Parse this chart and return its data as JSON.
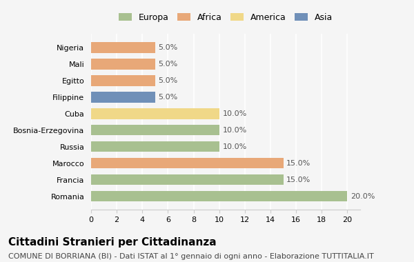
{
  "categories": [
    "Romania",
    "Francia",
    "Marocco",
    "Russia",
    "Bosnia-Erzegovina",
    "Cuba",
    "Filippine",
    "Egitto",
    "Mali",
    "Nigeria"
  ],
  "values": [
    20.0,
    15.0,
    15.0,
    10.0,
    10.0,
    10.0,
    5.0,
    5.0,
    5.0,
    5.0
  ],
  "colors": [
    "#a8c090",
    "#a8c090",
    "#e8a878",
    "#a8c090",
    "#a8c090",
    "#f0d888",
    "#7090b8",
    "#e8a878",
    "#e8a878",
    "#e8a878"
  ],
  "legend_labels": [
    "Europa",
    "Africa",
    "America",
    "Asia"
  ],
  "legend_colors": [
    "#a8c090",
    "#e8a878",
    "#f0d888",
    "#7090b8"
  ],
  "xlim": [
    0,
    21
  ],
  "xticks": [
    0,
    2,
    4,
    6,
    8,
    10,
    12,
    14,
    16,
    18,
    20
  ],
  "title": "Cittadini Stranieri per Cittadinanza",
  "subtitle": "COMUNE DI BORRIANA (BI) - Dati ISTAT al 1° gennaio di ogni anno - Elaborazione TUTTITALIA.IT",
  "bg_color": "#f5f5f5",
  "grid_color": "#ffffff",
  "title_fontsize": 11,
  "subtitle_fontsize": 8,
  "tick_fontsize": 8,
  "label_fontsize": 8,
  "legend_fontsize": 9
}
